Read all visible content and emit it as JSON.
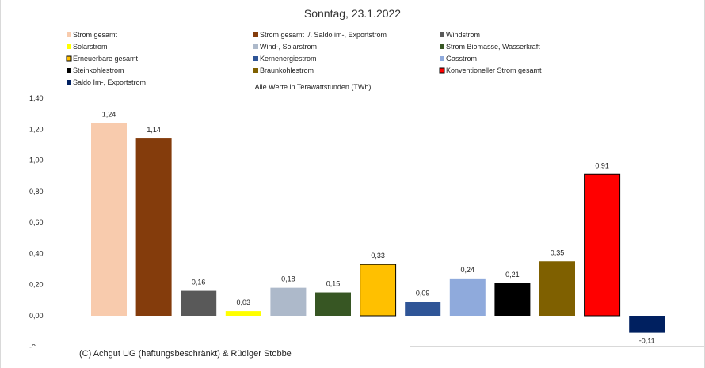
{
  "chart_data": {
    "type": "bar",
    "title": "Sonntag, 23.1.2022",
    "note": "Alle Werte in Terawattstunden (TWh)",
    "copyright": "(C) Achgut UG (haftungsbeschränkt) & Rüdiger Stobbe",
    "ylim": [
      -0.2,
      1.4
    ],
    "yticks": [
      {
        "value": 1.4,
        "label": "1,40"
      },
      {
        "value": 1.2,
        "label": "1,20"
      },
      {
        "value": 1.0,
        "label": "1,00"
      },
      {
        "value": 0.8,
        "label": "0,80"
      },
      {
        "value": 0.6,
        "label": "0,60"
      },
      {
        "value": 0.4,
        "label": "0,40"
      },
      {
        "value": 0.2,
        "label": "0,20"
      },
      {
        "value": 0.0,
        "label": "0,00"
      },
      {
        "value": -0.2,
        "label": "-0,"
      }
    ],
    "series": [
      {
        "name": "Strom gesamt",
        "value": 1.24,
        "label": "1,24",
        "color": "#F8CBAD",
        "outline": false
      },
      {
        "name": "Strom gesamt ./. Saldo im-, Exportstrom",
        "value": 1.14,
        "label": "1,14",
        "color": "#843C0C",
        "outline": false
      },
      {
        "name": "Windstrom",
        "value": 0.16,
        "label": "0,16",
        "color": "#595959",
        "outline": false
      },
      {
        "name": "Solarstrom",
        "value": 0.03,
        "label": "0,03",
        "color": "#FFFF00",
        "outline": false
      },
      {
        "name": "Wind-, Solarstrom",
        "value": 0.18,
        "label": "0,18",
        "color": "#ADB9CA",
        "outline": false
      },
      {
        "name": "Strom Biomasse, Wasserkraft",
        "value": 0.15,
        "label": "0,15",
        "color": "#375623",
        "outline": false
      },
      {
        "name": "Erneuerbare gesamt",
        "value": 0.33,
        "label": "0,33",
        "color": "#FFC000",
        "outline": true
      },
      {
        "name": "Kernenergiestrom",
        "value": 0.09,
        "label": "0,09",
        "color": "#2F5597",
        "outline": false
      },
      {
        "name": "Gasstrom",
        "value": 0.24,
        "label": "0,24",
        "color": "#8FAADC",
        "outline": false
      },
      {
        "name": "Steinkohlestrom",
        "value": 0.21,
        "label": "0,21",
        "color": "#000000",
        "outline": false
      },
      {
        "name": "Braunkohlestrom",
        "value": 0.35,
        "label": "0,35",
        "color": "#7F6000",
        "outline": false
      },
      {
        "name": "Konventioneller Strom gesamt",
        "value": 0.91,
        "label": "0,91",
        "color": "#FF0000",
        "outline": true
      },
      {
        "name": "Saldo Im-, Exportstrom",
        "value": -0.11,
        "label": "-0,11",
        "color": "#002060",
        "outline": false
      }
    ],
    "legend_placement": "top",
    "grid": false
  }
}
